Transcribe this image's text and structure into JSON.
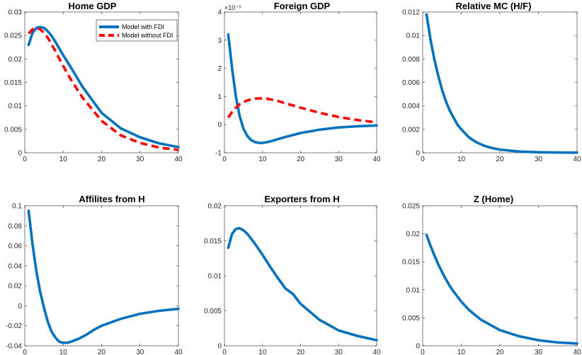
{
  "figure": {
    "colors": {
      "with_fdi": "#0072BD",
      "without_fdi": "#FF0000",
      "axis": "#262626"
    }
  },
  "legend": {
    "entries": [
      "Model with FDI",
      "Model without FDI"
    ]
  },
  "chart_data": [
    {
      "type": "line",
      "title": "Home GDP",
      "xlim": [
        0,
        40
      ],
      "ylim": [
        0,
        0.03
      ],
      "xticks": [
        0,
        10,
        20,
        30,
        40
      ],
      "xtick_labels": [
        "0",
        "10",
        "20",
        "30",
        "40"
      ],
      "yticks": [
        0,
        0.005,
        0.01,
        0.015,
        0.02,
        0.025,
        0.03
      ],
      "ytick_labels": [
        "0",
        "0.005",
        "0.01",
        "0.015",
        "0.02",
        "0.025",
        "0.03"
      ],
      "legend_location": "top-right",
      "series": [
        {
          "name": "Model with FDI",
          "style": "solid",
          "x": [
            1,
            2,
            3,
            4,
            5,
            6,
            7,
            8,
            10,
            12,
            15,
            20,
            25,
            30,
            35,
            40
          ],
          "y": [
            0.023,
            0.0255,
            0.0266,
            0.0268,
            0.0266,
            0.0259,
            0.0249,
            0.0236,
            0.0208,
            0.0182,
            0.0141,
            0.0085,
            0.0052,
            0.0033,
            0.002,
            0.0012
          ]
        },
        {
          "name": "Model without FDI",
          "style": "dashed",
          "x": [
            1,
            2,
            3,
            4,
            5,
            6,
            7,
            8,
            10,
            12,
            15,
            20,
            25,
            30,
            35,
            40
          ],
          "y": [
            0.0254,
            0.0263,
            0.0266,
            0.0263,
            0.0256,
            0.0245,
            0.0231,
            0.0216,
            0.0185,
            0.0156,
            0.0118,
            0.0068,
            0.0037,
            0.0021,
            0.0011,
            0.0006
          ]
        }
      ]
    },
    {
      "type": "line",
      "title": "Foreign GDP",
      "xlim": [
        0,
        40
      ],
      "ylim": [
        -1,
        4
      ],
      "yscale_label": "×10⁻³",
      "xticks": [
        0,
        10,
        20,
        30,
        40
      ],
      "xtick_labels": [
        "0",
        "10",
        "20",
        "30",
        "40"
      ],
      "yticks": [
        -1,
        0,
        1,
        2,
        3,
        4
      ],
      "ytick_labels": [
        "-1",
        "0",
        "1",
        "2",
        "3",
        "4"
      ],
      "series": [
        {
          "name": "Model with FDI",
          "style": "solid",
          "x": [
            1,
            2,
            3,
            4,
            5,
            6,
            7,
            8,
            9,
            10,
            11,
            12,
            14,
            16,
            20,
            25,
            30,
            35,
            40
          ],
          "y": [
            3.2,
            2.0,
            1.0,
            0.3,
            -0.15,
            -0.4,
            -0.55,
            -0.62,
            -0.65,
            -0.65,
            -0.63,
            -0.6,
            -0.52,
            -0.44,
            -0.3,
            -0.18,
            -0.1,
            -0.06,
            -0.03
          ]
        },
        {
          "name": "Model without FDI",
          "style": "dashed",
          "x": [
            1,
            2,
            3,
            4,
            5,
            6,
            7,
            8,
            9,
            10,
            11,
            12,
            14,
            16,
            20,
            25,
            30,
            35,
            40
          ],
          "y": [
            0.25,
            0.45,
            0.6,
            0.72,
            0.8,
            0.86,
            0.9,
            0.92,
            0.93,
            0.93,
            0.92,
            0.9,
            0.84,
            0.76,
            0.6,
            0.42,
            0.27,
            0.16,
            0.08
          ]
        }
      ]
    },
    {
      "type": "line",
      "title": "Relative MC (H/F)",
      "xlim": [
        0,
        40
      ],
      "ylim": [
        0,
        0.012
      ],
      "xticks": [
        0,
        10,
        20,
        30,
        40
      ],
      "xtick_labels": [
        "0",
        "10",
        "20",
        "30",
        "40"
      ],
      "yticks": [
        0,
        0.002,
        0.004,
        0.006,
        0.008,
        0.01,
        0.012
      ],
      "ytick_labels": [
        "0",
        "0.002",
        "0.004",
        "0.006",
        "0.008",
        "0.01",
        "0.012"
      ],
      "series": [
        {
          "name": "Model with FDI",
          "style": "solid",
          "x": [
            1,
            2,
            3,
            4,
            5,
            6,
            7,
            8,
            9,
            10,
            12,
            14,
            16,
            18,
            20,
            25,
            30,
            35,
            40
          ],
          "y": [
            0.0118,
            0.0097,
            0.008,
            0.0066,
            0.0054,
            0.0044,
            0.0036,
            0.003,
            0.0024,
            0.002,
            0.0013,
            0.00088,
            0.00059,
            0.0004,
            0.00027,
            0.0001,
            4e-05,
            2e-05,
            1e-05
          ]
        }
      ]
    },
    {
      "type": "line",
      "title": "Affilites from H",
      "xlim": [
        0,
        40
      ],
      "ylim": [
        -0.04,
        0.1
      ],
      "xticks": [
        0,
        10,
        20,
        30,
        40
      ],
      "xtick_labels": [
        "0",
        "10",
        "20",
        "30",
        "40"
      ],
      "yticks": [
        -0.04,
        -0.02,
        0,
        0.02,
        0.04,
        0.06,
        0.08,
        0.1
      ],
      "ytick_labels": [
        "-0.04",
        "-0.02",
        "0",
        "0.02",
        "0.04",
        "0.06",
        "0.08",
        "0.1"
      ],
      "series": [
        {
          "name": "Model with FDI",
          "style": "solid",
          "x": [
            1,
            2,
            3,
            4,
            5,
            6,
            7,
            8,
            9,
            10,
            11,
            12,
            14,
            16,
            18,
            20,
            25,
            30,
            35,
            40
          ],
          "y": [
            0.095,
            0.062,
            0.035,
            0.014,
            -0.002,
            -0.016,
            -0.026,
            -0.032,
            -0.036,
            -0.037,
            -0.037,
            -0.036,
            -0.033,
            -0.029,
            -0.024,
            -0.02,
            -0.013,
            -0.008,
            -0.005,
            -0.003
          ]
        }
      ]
    },
    {
      "type": "line",
      "title": "Exporters from H",
      "xlim": [
        0,
        40
      ],
      "ylim": [
        0,
        0.02
      ],
      "xticks": [
        0,
        10,
        20,
        30,
        40
      ],
      "xtick_labels": [
        "0",
        "10",
        "20",
        "30",
        "40"
      ],
      "yticks": [
        0,
        0.005,
        0.01,
        0.015,
        0.02
      ],
      "ytick_labels": [
        "0",
        "0.005",
        "0.01",
        "0.015",
        "0.02"
      ],
      "series": [
        {
          "name": "Model with FDI",
          "style": "solid",
          "x": [
            1,
            2,
            3,
            4,
            5,
            6,
            7,
            8,
            10,
            12,
            14,
            16,
            18,
            20,
            25,
            30,
            35,
            40
          ],
          "y": [
            0.014,
            0.016,
            0.0167,
            0.0168,
            0.0165,
            0.016,
            0.0153,
            0.0146,
            0.013,
            0.0113,
            0.0097,
            0.0082,
            0.0074,
            0.006,
            0.0037,
            0.0022,
            0.0014,
            0.0008
          ]
        }
      ]
    },
    {
      "type": "line",
      "title": "Z (Home)",
      "xlim": [
        0,
        40
      ],
      "ylim": [
        0,
        0.025
      ],
      "xticks": [
        0,
        10,
        20,
        30,
        40
      ],
      "xtick_labels": [
        "0",
        "10",
        "20",
        "30",
        "40"
      ],
      "yticks": [
        0,
        0.005,
        0.01,
        0.015,
        0.02,
        0.025
      ],
      "ytick_labels": [
        "0",
        "0.005",
        "0.01",
        "0.015",
        "0.02",
        "0.025"
      ],
      "series": [
        {
          "name": "Model with FDI",
          "style": "solid",
          "x": [
            1,
            2,
            3,
            4,
            5,
            6,
            7,
            8,
            10,
            12,
            15,
            20,
            25,
            30,
            35,
            40
          ],
          "y": [
            0.0198,
            0.0179,
            0.0162,
            0.0146,
            0.0132,
            0.0119,
            0.0107,
            0.0097,
            0.0079,
            0.0064,
            0.0047,
            0.0028,
            0.0017,
            0.001,
            0.0006,
            0.0004
          ]
        }
      ]
    }
  ]
}
